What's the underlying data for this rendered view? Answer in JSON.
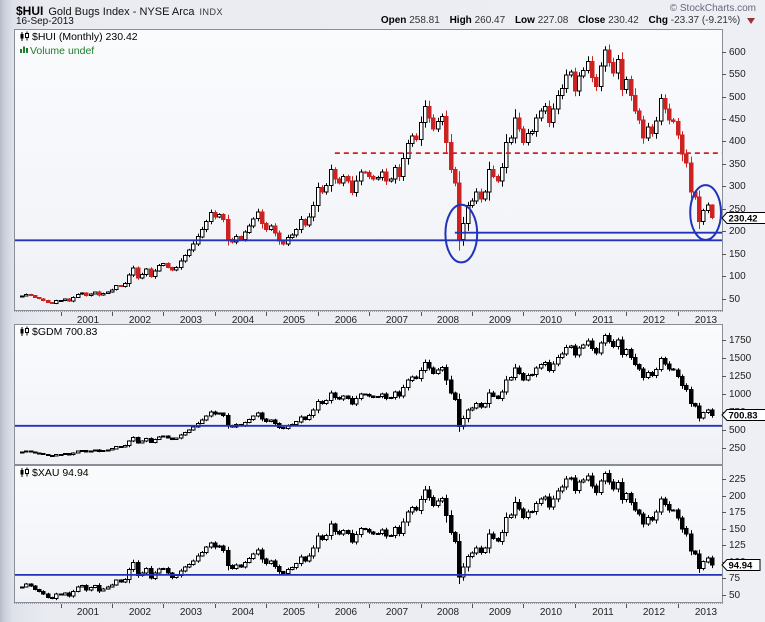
{
  "header": {
    "symbol": "$HUI",
    "title": "Gold Bugs Index - NYSE Arca",
    "exchange_tag": "INDX",
    "date": "16-Sep-2013",
    "copyright": "© StockCharts.com",
    "quote": {
      "open_label": "Open",
      "open": "258.81",
      "high_label": "High",
      "high": "260.47",
      "low_label": "Low",
      "low": "227.08",
      "close_label": "Close",
      "close": "230.42",
      "chg_label": "Chg",
      "chg": "-23.37 (-9.21%)"
    }
  },
  "colors": {
    "up_fill": "#ffffff",
    "up_outline": "#000000",
    "down_hui": "#cc2222",
    "down_dark": "#000000",
    "annotation_blue": "#2233bb",
    "annotation_red": "#cc2222",
    "legend_green": "#1e7d2c",
    "axis_text": "#222222",
    "chg_triangle": "#993333"
  },
  "x_axis": {
    "start_month": "2000-04",
    "years": [
      "2001",
      "2002",
      "2003",
      "2004",
      "2005",
      "2006",
      "2007",
      "2008",
      "2009",
      "2010",
      "2011",
      "2012",
      "2013"
    ]
  },
  "chart_data": [
    {
      "type": "candlestick",
      "symbol": "$HUI",
      "label": "$HUI (Monthly) 230.42",
      "sub_label": "Volume undef",
      "last_price": "230.42",
      "timeframe": "monthly",
      "x_start": "2000-04",
      "x_end": "2013-09",
      "ylim": [
        25,
        648
      ],
      "y_ticks": [
        50,
        100,
        150,
        200,
        250,
        300,
        350,
        400,
        450,
        500,
        550,
        600
      ],
      "down_color": "#cc2222",
      "last_ohlc": [
        258.81,
        260.47,
        227.08,
        230.42
      ],
      "monthly_closes": [
        56,
        60,
        57,
        53,
        50,
        46,
        42,
        40,
        46,
        46,
        50,
        45,
        53,
        60,
        63,
        57,
        61,
        65,
        58,
        62,
        65,
        70,
        79,
        77,
        84,
        103,
        118,
        96,
        104,
        116,
        99,
        112,
        124,
        128,
        120,
        114,
        120,
        134,
        146,
        158,
        172,
        188,
        204,
        222,
        242,
        232,
        237,
        226,
        182,
        176,
        188,
        182,
        198,
        212,
        228,
        243,
        217,
        204,
        212,
        196,
        178,
        172,
        186,
        192,
        204,
        226,
        214,
        232,
        258,
        298,
        288,
        302,
        338,
        316,
        308,
        322,
        312,
        286,
        312,
        332,
        331,
        322,
        316,
        320,
        332,
        312,
        316,
        342,
        322,
        362,
        396,
        412,
        404,
        442,
        478,
        452,
        428,
        444,
        456,
        398,
        338,
        308,
        182,
        218,
        258,
        268,
        288,
        272,
        288,
        338,
        322,
        312,
        342,
        398,
        408,
        452,
        428,
        398,
        418,
        422,
        452,
        468,
        478,
        442,
        472,
        502,
        518,
        548,
        554,
        512,
        546,
        558,
        578,
        542,
        522,
        568,
        604,
        576,
        552,
        582,
        516,
        538,
        502,
        468,
        448,
        408,
        432,
        418,
        446,
        496,
        472,
        448,
        444,
        414,
        372,
        352,
        288,
        276,
        222,
        246,
        259,
        230.42
      ],
      "annotations": {
        "lines": [
          {
            "style": "solid",
            "value": 180,
            "from": null
          },
          {
            "style": "solid",
            "value": 197,
            "from": "2008-09"
          },
          {
            "style": "dashed",
            "value": 374,
            "from": "2006-05"
          }
        ],
        "ellipses": [
          {
            "center_month": "2008-10",
            "center_value": 195,
            "rx_months": 3.7,
            "ry_value": 64
          },
          {
            "center_month": "2013-07",
            "center_value": 242,
            "rx_months": 3.6,
            "ry_value": 61
          }
        ]
      }
    },
    {
      "type": "candlestick",
      "symbol": "$GDM",
      "label": "$GDM  700.83",
      "last_price": "700.83",
      "timeframe": "monthly",
      "x_start": "2000-04",
      "x_end": "2013-09",
      "ylim": [
        25,
        1955
      ],
      "y_ticks": [
        250,
        500,
        750,
        1000,
        1250,
        1500,
        1750
      ],
      "down_color": "#000000",
      "monthly_closes": [
        190,
        204,
        194,
        180,
        170,
        156,
        143,
        136,
        156,
        156,
        170,
        153,
        180,
        204,
        214,
        194,
        207,
        221,
        197,
        211,
        221,
        237,
        267,
        259,
        281,
        344,
        393,
        318,
        343,
        381,
        324,
        365,
        403,
        415,
        387,
        366,
        384,
        427,
        464,
        499,
        542,
        590,
        638,
        690,
        750,
        717,
        730,
        695,
        559,
        539,
        573,
        553,
        600,
        641,
        689,
        731,
        651,
        612,
        636,
        588,
        534,
        516,
        558,
        576,
        612,
        678,
        642,
        696,
        774,
        894,
        864,
        906,
        1014,
        948,
        924,
        966,
        936,
        858,
        936,
        996,
        993,
        966,
        948,
        960,
        996,
        936,
        948,
        1026,
        966,
        1086,
        1188,
        1236,
        1212,
        1326,
        1434,
        1356,
        1284,
        1332,
        1368,
        1194,
        1014,
        924,
        546,
        654,
        774,
        804,
        864,
        816,
        864,
        1014,
        966,
        936,
        1026,
        1194,
        1224,
        1356,
        1284,
        1194,
        1254,
        1266,
        1356,
        1404,
        1434,
        1326,
        1416,
        1506,
        1554,
        1644,
        1662,
        1536,
        1638,
        1674,
        1734,
        1626,
        1566,
        1704,
        1812,
        1728,
        1656,
        1746,
        1548,
        1614,
        1506,
        1404,
        1344,
        1224,
        1296,
        1254,
        1338,
        1488,
        1416,
        1344,
        1332,
        1242,
        1116,
        1056,
        864,
        828,
        666,
        738,
        777,
        700.83
      ],
      "annotations": {
        "lines": [
          {
            "style": "solid",
            "value": 555,
            "from": null
          }
        ],
        "ellipses": []
      }
    },
    {
      "type": "candlestick",
      "symbol": "$XAU",
      "label": "$XAU  94.94",
      "last_price": "94.94",
      "timeframe": "monthly",
      "x_start": "2000-04",
      "x_end": "2013-09",
      "ylim": [
        39,
        245
      ],
      "y_ticks": [
        50,
        75,
        100,
        125,
        150,
        175,
        200,
        225
      ],
      "down_color": "#000000",
      "monthly_closes": [
        62,
        66,
        63,
        58,
        55,
        51,
        46,
        44,
        51,
        50,
        53,
        48,
        55,
        62,
        64,
        57,
        61,
        64,
        56,
        59,
        62,
        65,
        72,
        69,
        73,
        88,
        99,
        79,
        83,
        90,
        75,
        83,
        89,
        90,
        83,
        76,
        79,
        86,
        92,
        96,
        101,
        109,
        114,
        122,
        128,
        122,
        124,
        117,
        94,
        90,
        95,
        92,
        99,
        105,
        112,
        118,
        104,
        97,
        101,
        93,
        85,
        82,
        88,
        91,
        97,
        107,
        101,
        109,
        121,
        139,
        134,
        140,
        157,
        146,
        142,
        147,
        143,
        130,
        141,
        150,
        149,
        145,
        142,
        143,
        148,
        139,
        140,
        152,
        143,
        160,
        175,
        182,
        178,
        194,
        209,
        197,
        185,
        192,
        196,
        170,
        144,
        131,
        77,
        92,
        108,
        113,
        121,
        114,
        121,
        142,
        135,
        131,
        144,
        167,
        171,
        190,
        180,
        167,
        175,
        176,
        188,
        195,
        198,
        183,
        195,
        207,
        213,
        225,
        227,
        208,
        221,
        224,
        230,
        215,
        205,
        222,
        234,
        221,
        210,
        220,
        194,
        203,
        190,
        178,
        172,
        157,
        167,
        163,
        175,
        195,
        187,
        178,
        178,
        166,
        150,
        142,
        116,
        112,
        90,
        100,
        106,
        94.94
      ],
      "annotations": {
        "lines": [
          {
            "style": "solid",
            "value": 80,
            "from": null
          }
        ],
        "ellipses": []
      }
    }
  ]
}
